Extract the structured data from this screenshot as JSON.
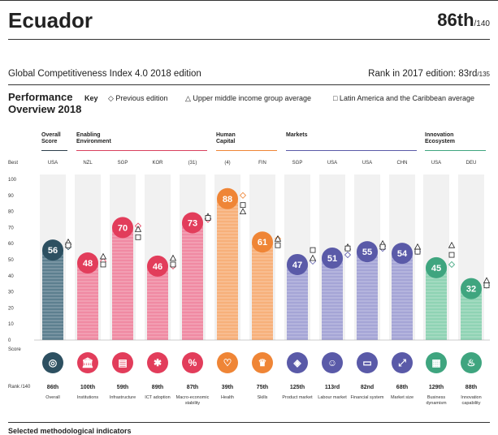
{
  "header": {
    "country": "Ecuador",
    "rank": "86th",
    "rank_total": "/140",
    "edition": "Global Competitiveness Index 4.0 2018 edition",
    "prev_rank_label": "Rank in 2017 edition: 83rd",
    "prev_rank_total": "/135"
  },
  "section": {
    "title_line1": "Performance",
    "title_line2": "Overview 2018",
    "key_label": "Key",
    "key_prev": "◇ Previous edition",
    "key_upper": "△ Upper middle income group average",
    "key_latam": "□ Latin America and the Caribbean average"
  },
  "axis": {
    "best_label": "Best",
    "score_label": "Score",
    "rank_label": "Rank /140",
    "ticks": [
      "100",
      "90",
      "80",
      "70",
      "60",
      "50",
      "40",
      "30",
      "20",
      "10",
      "0"
    ]
  },
  "groups": [
    {
      "name": "Overall\nScore",
      "color": "#2d3e4c"
    },
    {
      "name": "Enabling\nEnvironment",
      "color": "#d9415e"
    },
    {
      "name": "Human\nCapital",
      "color": "#ef8536"
    },
    {
      "name": "Markets",
      "color": "#5a5aa8"
    },
    {
      "name": "Innovation\nEcosystem",
      "color": "#3fa57f"
    }
  ],
  "colors": {
    "overall": "#2d5061",
    "overall_bar": "#5d7f8f",
    "enabling": "#e23d5b",
    "enabling_bar": "#f08aa3",
    "human": "#ef8536",
    "human_bar": "#f7b07a",
    "markets": "#5a5aa8",
    "markets_bar": "#a5a5d6",
    "innovation": "#3fa57f",
    "innovation_bar": "#8fd3b4"
  },
  "chart_data": {
    "type": "bar",
    "ylim": [
      0,
      100
    ],
    "grid": false,
    "categories": [
      "Overall",
      "Institutions",
      "Infrastructure",
      "ICT adoption",
      "Macro-economic stability",
      "Health",
      "Skills",
      "Product market",
      "Labour market",
      "Financial system",
      "Market size",
      "Business dynamism",
      "Innovation capability"
    ],
    "values": [
      56,
      48,
      70,
      46,
      73,
      88,
      61,
      47,
      51,
      55,
      54,
      45,
      32
    ],
    "score_labels": [
      "56",
      "48",
      "70",
      "46",
      "73",
      "88",
      "61",
      "47",
      "51",
      "55",
      "54",
      "45",
      "32"
    ],
    "best": [
      "USA",
      "NZL",
      "SGP",
      "KOR",
      "(31)",
      "(4)",
      "FIN",
      "SGP",
      "USA",
      "USA",
      "CHN",
      "USA",
      "DEU"
    ],
    "ranks": [
      "86th",
      "100th",
      "59th",
      "89th",
      "87th",
      "39th",
      "75th",
      "125th",
      "113rd",
      "82nd",
      "68th",
      "129th",
      "88th"
    ],
    "group_index": [
      0,
      1,
      1,
      1,
      1,
      2,
      2,
      3,
      3,
      3,
      3,
      4,
      4
    ],
    "icons": [
      "target-icon",
      "bank-icon",
      "train-icon",
      "chip-icon",
      "percent-icon",
      "heart-icon",
      "graduate-icon",
      "tag-icon",
      "workers-icon",
      "card-icon",
      "expand-icon",
      "building-icon",
      "bulb-icon"
    ],
    "icon_glyphs": [
      "◎",
      "🏛",
      "▤",
      "✱",
      "%",
      "♡",
      "♛",
      "◈",
      "☺",
      "▭",
      "⤢",
      "▦",
      "♨"
    ],
    "series": [
      {
        "name": "Previous edition",
        "values": [
          58,
          49,
          71,
          46,
          75,
          90,
          63,
          49,
          53,
          57,
          55,
          47,
          34
        ]
      },
      {
        "name": "Upper middle income group average",
        "values": [
          61,
          52,
          69,
          51,
          77,
          80,
          63,
          51,
          58,
          60,
          58,
          59,
          37
        ]
      },
      {
        "name": "Latin America and the Caribbean average",
        "values": [
          59,
          47,
          64,
          47,
          76,
          84,
          59,
          56,
          57,
          58,
          55,
          53,
          34
        ]
      }
    ]
  },
  "footer": {
    "text": "Selected methodological indicators"
  }
}
